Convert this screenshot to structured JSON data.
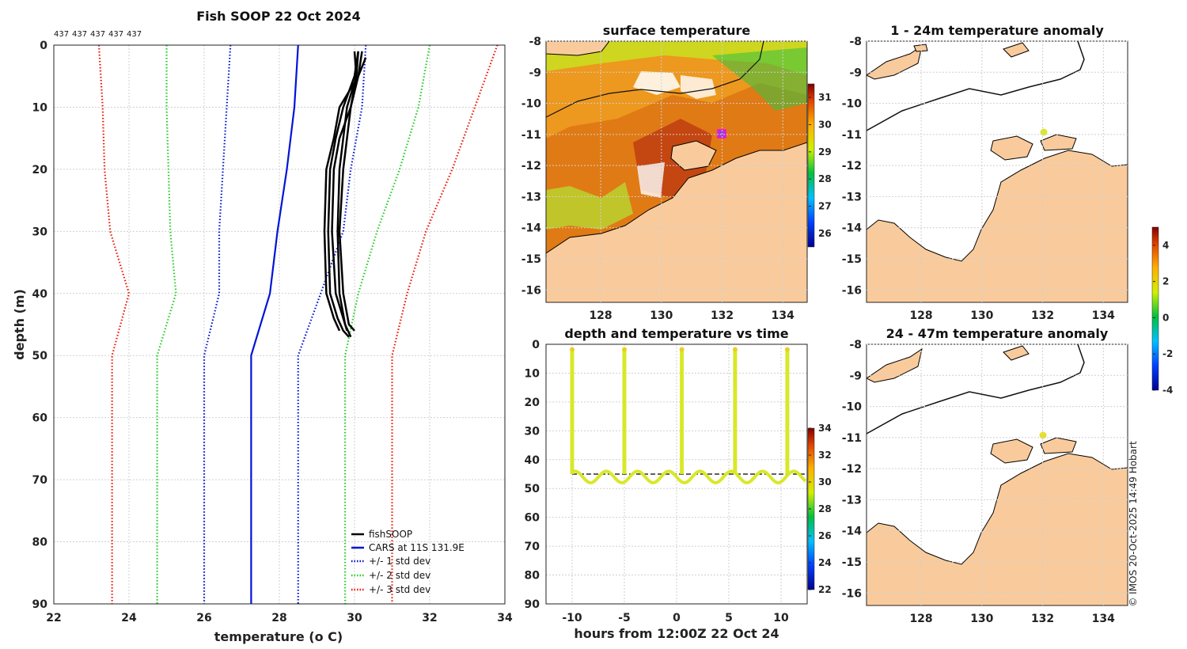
{
  "figure": {
    "main_title": "Fish SOOP 22 Oct 2024",
    "profile_counts": [
      "437",
      "437",
      "437",
      "437",
      "437"
    ],
    "footer": "© IMOS 20-Oct-2025 14:49 Hobart"
  },
  "colors": {
    "land": "#f9cb9c",
    "fishsoop": "#000000",
    "cars": "#0014d8",
    "std1": "#0010d0",
    "std2": "#22cc22",
    "std3": "#ee1100",
    "marker": "#d8e82a"
  },
  "chart_data": [
    {
      "id": "profile",
      "type": "line",
      "xlabel": "temperature (o C)",
      "ylabel": "depth (m)",
      "xlim": [
        22,
        34
      ],
      "ylim": [
        0,
        90
      ],
      "x_ticks": [
        "22",
        "24",
        "26",
        "28",
        "30",
        "32",
        "34"
      ],
      "y_ticks": [
        "0",
        "10",
        "20",
        "30",
        "40",
        "50",
        "60",
        "70",
        "80",
        "90"
      ],
      "grid": true,
      "legend_position": "bottom-right",
      "legend": [
        "fishSOOP",
        "CARS at 11S 131.9E",
        "+/- 1 std dev",
        "+/- 2 std dev",
        "+/- 3 std dev"
      ],
      "series": [
        {
          "name": "CARS at 11S 131.9E",
          "style": "solid",
          "depth": [
            0,
            10,
            20,
            30,
            40,
            50,
            90
          ],
          "temp": [
            28.5,
            28.4,
            28.2,
            27.95,
            27.75,
            27.25,
            27.25
          ]
        },
        {
          "name": "+1 std dev",
          "style": "dotted",
          "depth": [
            0,
            10,
            20,
            30,
            40,
            50,
            90
          ],
          "temp": [
            30.3,
            30.2,
            29.9,
            29.7,
            29.1,
            28.5,
            28.5
          ]
        },
        {
          "name": "-1 std dev",
          "style": "dotted",
          "depth": [
            0,
            10,
            20,
            30,
            40,
            50,
            90
          ],
          "temp": [
            26.7,
            26.6,
            26.5,
            26.4,
            26.4,
            26.0,
            26.0
          ]
        },
        {
          "name": "+2 std dev",
          "style": "dotted",
          "depth": [
            0,
            10,
            20,
            30,
            40,
            50,
            90
          ],
          "temp": [
            32.0,
            31.7,
            31.2,
            30.6,
            30.1,
            29.75,
            29.75
          ]
        },
        {
          "name": "-2 std dev",
          "style": "dotted",
          "depth": [
            0,
            10,
            20,
            30,
            40,
            50,
            90
          ],
          "temp": [
            25.0,
            25.0,
            25.05,
            25.1,
            25.25,
            24.75,
            24.75
          ]
        },
        {
          "name": "+3 std dev",
          "style": "dotted",
          "depth": [
            0,
            10,
            20,
            30,
            40,
            50,
            90
          ],
          "temp": [
            33.8,
            33.2,
            32.6,
            31.9,
            31.4,
            31.0,
            31.0
          ]
        },
        {
          "name": "-3 std dev",
          "style": "dotted",
          "depth": [
            0,
            10,
            20,
            30,
            40,
            50,
            90
          ],
          "temp": [
            23.2,
            23.3,
            23.35,
            23.5,
            24.0,
            23.55,
            23.55
          ]
        },
        {
          "name": "fishSOOP",
          "style": "solid",
          "profiles": [
            {
              "depth": [
                1,
                5,
                10,
                15,
                20,
                30,
                40,
                44,
                46,
                47
              ],
              "temp": [
                30.1,
                30.0,
                29.7,
                29.5,
                29.35,
                29.3,
                29.35,
                29.55,
                29.7,
                29.85
              ]
            },
            {
              "depth": [
                1,
                5,
                10,
                15,
                20,
                30,
                40,
                44,
                46
              ],
              "temp": [
                30.2,
                30.1,
                29.9,
                29.6,
                29.45,
                29.4,
                29.5,
                29.7,
                29.8
              ]
            },
            {
              "depth": [
                1,
                5,
                10,
                15,
                20,
                30,
                40,
                45,
                47
              ],
              "temp": [
                30.1,
                30.05,
                29.8,
                29.7,
                29.6,
                29.55,
                29.6,
                29.75,
                29.9
              ]
            },
            {
              "depth": [
                2,
                5,
                10,
                15,
                20,
                30,
                40,
                44,
                46
              ],
              "temp": [
                30.3,
                30.1,
                29.6,
                29.45,
                29.25,
                29.2,
                29.25,
                29.45,
                29.6
              ]
            },
            {
              "depth": [
                1,
                5,
                10,
                15,
                20,
                30,
                40,
                45,
                46
              ],
              "temp": [
                30.0,
                30.05,
                29.9,
                29.8,
                29.7,
                29.6,
                29.7,
                29.85,
                30.0
              ]
            }
          ]
        }
      ]
    },
    {
      "id": "sst_map",
      "type": "heatmap",
      "title": "surface temperature",
      "xlim": [
        126.2,
        134.8
      ],
      "ylim": [
        -16.4,
        -8
      ],
      "x_ticks": [
        "128",
        "130",
        "132",
        "134"
      ],
      "y_ticks": [
        "-8",
        "-9",
        "-10",
        "-11",
        "-12",
        "-13",
        "-14",
        "-15",
        "-16"
      ],
      "colorbar_range": [
        25.5,
        31.5
      ],
      "colorbar_ticks": [
        "26",
        "27",
        "28",
        "29",
        "30",
        "31"
      ],
      "marker": {
        "lon": 131.9,
        "lat": -11.0
      }
    },
    {
      "id": "depth_time",
      "type": "scatter",
      "title": "depth and temperature vs time",
      "xlabel": "hours from 12:00Z 22 Oct 24",
      "xlim": [
        -12.5,
        12.5
      ],
      "ylim": [
        0,
        90
      ],
      "x_ticks": [
        "-10",
        "-5",
        "0",
        "5",
        "10"
      ],
      "y_ticks": [
        "0",
        "10",
        "20",
        "30",
        "40",
        "50",
        "60",
        "70",
        "80",
        "90"
      ],
      "reference_depth": 45,
      "casts_hours": [
        -10,
        -5,
        0.5,
        5.6,
        10.6
      ],
      "bottom_depth_range": [
        44,
        48
      ],
      "temperature_approx": 29.5,
      "colorbar_range": [
        22,
        34
      ],
      "colorbar_ticks": [
        "22",
        "24",
        "26",
        "28",
        "30",
        "32",
        "34"
      ]
    },
    {
      "id": "anom_upper",
      "type": "heatmap",
      "title": "1 - 24m temperature anomaly",
      "xlim": [
        126.2,
        134.8
      ],
      "ylim": [
        -16.4,
        -8
      ],
      "x_ticks": [
        "128",
        "130",
        "132",
        "134"
      ],
      "y_ticks": [
        "-8",
        "-9",
        "-10",
        "-11",
        "-12",
        "-13",
        "-14",
        "-15",
        "-16"
      ],
      "marker": {
        "lon": 131.9,
        "lat": -10.95,
        "anomaly": 1.0
      }
    },
    {
      "id": "anom_lower",
      "type": "heatmap",
      "title": "24 - 47m temperature anomaly",
      "xlim": [
        126.2,
        134.8
      ],
      "ylim": [
        -16.4,
        -8
      ],
      "x_ticks": [
        "128",
        "130",
        "132",
        "134"
      ],
      "y_ticks": [
        "-8",
        "-9",
        "-10",
        "-11",
        "-12",
        "-13",
        "-14",
        "-15",
        "-16"
      ],
      "marker": {
        "lon": 131.9,
        "lat": -11.0,
        "anomaly": 1.8
      }
    },
    {
      "id": "anomaly_colorbar",
      "type": "heatmap",
      "colorbar_range": [
        -4,
        5
      ],
      "colorbar_ticks": [
        "-4",
        "-2",
        "0",
        "2",
        "4"
      ]
    }
  ]
}
